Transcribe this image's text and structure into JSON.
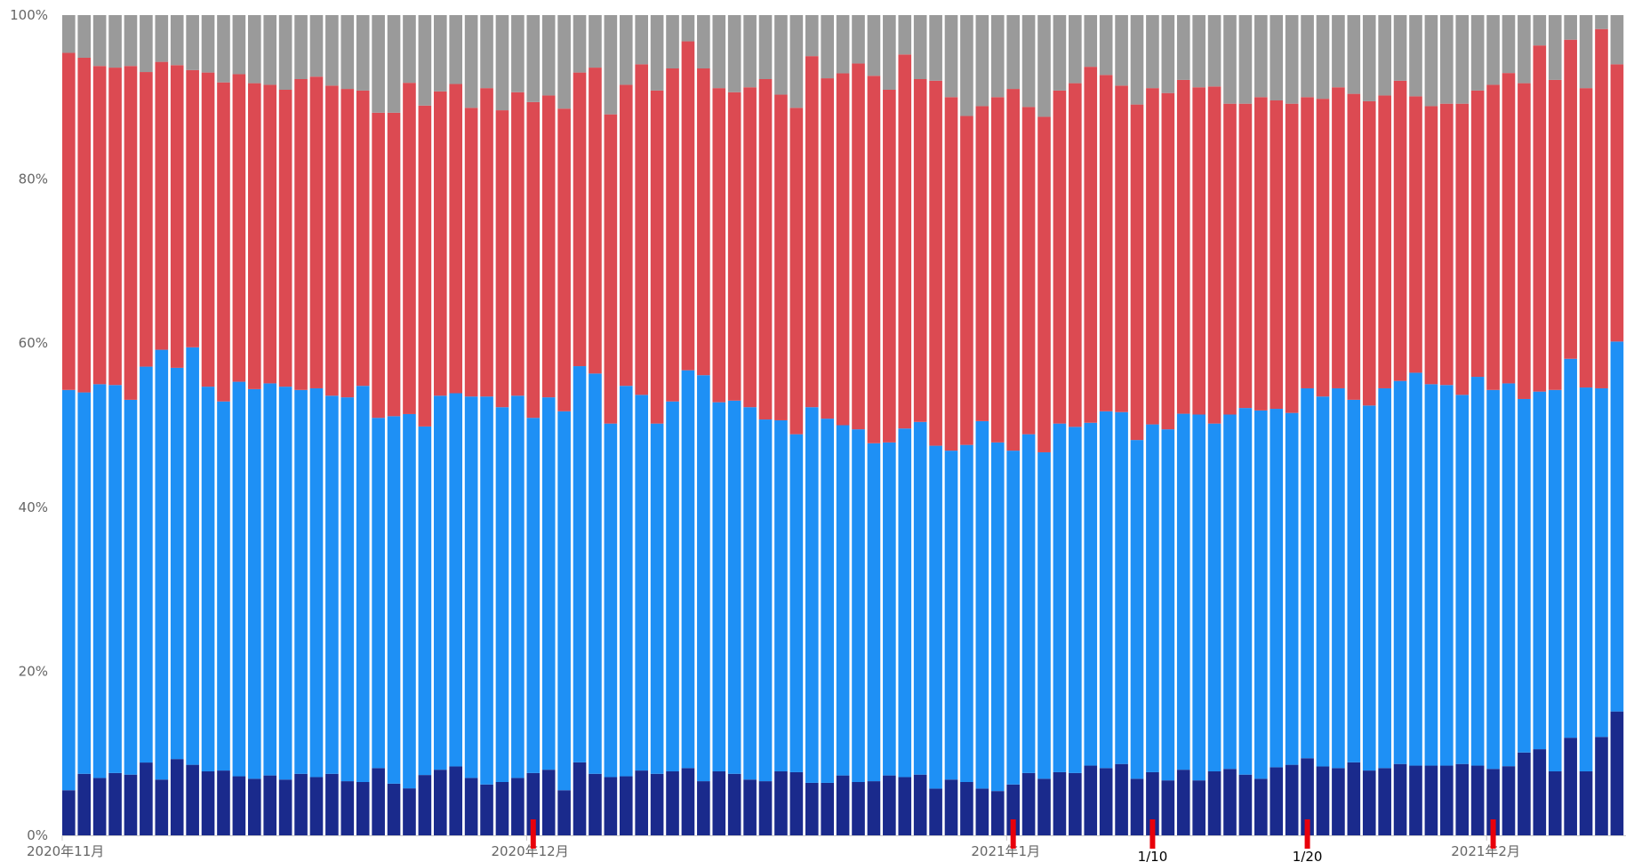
{
  "chart_data": {
    "type": "bar",
    "stacked": true,
    "normalized": true,
    "title": "",
    "xlabel": "",
    "ylabel": "",
    "ylim": [
      0,
      100
    ],
    "yticks": [
      "0%",
      "20%",
      "40%",
      "60%",
      "80%",
      "100%"
    ],
    "x_start": "2020-11-01",
    "x_end": "2021-02-11",
    "x_interval": "day",
    "x_tick_labels": [
      {
        "date": "2020-11-01",
        "label": "2020年11月"
      },
      {
        "date": "2020-12-01",
        "label": "2020年12月"
      },
      {
        "date": "2021-01-01",
        "label": "2021年1月"
      },
      {
        "date": "2021-02-01",
        "label": "2021年2月"
      }
    ],
    "annotation_markers": [
      {
        "date": "2020-12-01",
        "label": "",
        "color": "#e8000b"
      },
      {
        "date": "2021-01-01",
        "label": "",
        "color": "#e8000b"
      },
      {
        "date": "2021-01-10",
        "label": "1/10",
        "color": "#e8000b"
      },
      {
        "date": "2021-01-20",
        "label": "1/20",
        "color": "#e8000b"
      },
      {
        "date": "2021-02-01",
        "label": "",
        "color": "#e8000b"
      }
    ],
    "grid": false,
    "legend": "none",
    "series_stack_order": "bottom-to-top",
    "series": [
      {
        "color": "#1a2a8c",
        "values": [
          5.5,
          7.5,
          7,
          7.6,
          7.4,
          8.7,
          6.8,
          9.3,
          8.6,
          7.8,
          7.9,
          7.2,
          6.9,
          7.3,
          6.8,
          7.5,
          7.1,
          7.5,
          6.6,
          6.5,
          8.2,
          6.3,
          5.9,
          7.2,
          8,
          8.4,
          7,
          6.2,
          6.5,
          7,
          7.6,
          8,
          5.5,
          8.9,
          7.5,
          7.1,
          7.2,
          7.9,
          7.5,
          7.8,
          8.2,
          6.6,
          7.8,
          7.5,
          6.8,
          6.6,
          7.8,
          7.7,
          6.4,
          6.4,
          7.3,
          6.5,
          6.6,
          7.3,
          7.1,
          7.4,
          5.7,
          6.8,
          6.5,
          5.7,
          5.4,
          6.2,
          7.6,
          6.9,
          7.7,
          7.6,
          8.5,
          8.2,
          8.7,
          6.9,
          7.7,
          6.7,
          8,
          6.7,
          7.8,
          8.1,
          7.4,
          6.9,
          8.3,
          8.6,
          9.4,
          8.4,
          8.2,
          8.9,
          7.9,
          8.2,
          8.7,
          8.5,
          8.5,
          8.5,
          8.7,
          8.5,
          8.1,
          8.6,
          10.1,
          10.5,
          7.8,
          11.9,
          7.8,
          12,
          15.1
        ]
      },
      {
        "color": "#1e90f5",
        "values": [
          48.8,
          46.5,
          48,
          47.3,
          45.7,
          47.3,
          52.4,
          47.7,
          50.9,
          46.9,
          45,
          48.1,
          47.5,
          47.8,
          47.9,
          46.8,
          47.4,
          46.1,
          46.8,
          48.3,
          42.7,
          44.8,
          47,
          41.6,
          45.6,
          45.5,
          46.5,
          47.3,
          45.7,
          46.6,
          43.3,
          45.4,
          46.2,
          48.3,
          48.8,
          43.1,
          47.6,
          45.8,
          42.7,
          45.1,
          48.5,
          49.5,
          45,
          45.5,
          45.4,
          44.1,
          42.8,
          41.2,
          45.8,
          44.4,
          42.7,
          43,
          41.2,
          40.6,
          42.5,
          43,
          41.8,
          40.1,
          41.1,
          44.8,
          42.5,
          40.7,
          41.3,
          39.8,
          42.5,
          42.2,
          41.8,
          43.5,
          42.9,
          41.3,
          42.4,
          42.8,
          43.4,
          44.6,
          42.4,
          43.2,
          44.7,
          44.9,
          43.7,
          42.9,
          45.1,
          45.1,
          46.3,
          44.2,
          44.5,
          46.3,
          46.7,
          47.9,
          46.5,
          46.4,
          45,
          47.4,
          46.2,
          47.6,
          43.1,
          43.6,
          46.5,
          46.2,
          46.8,
          42.5,
          45.1
        ]
      },
      {
        "color": "#dc4a52",
        "values": [
          41.1,
          40.8,
          38.8,
          38.7,
          40.7,
          35.2,
          35.1,
          36.9,
          33.8,
          38.3,
          38.9,
          37.5,
          37.3,
          36.4,
          36.2,
          37.9,
          38,
          37.8,
          37.6,
          36,
          37.2,
          37,
          41.6,
          38.3,
          37.1,
          37.7,
          35.2,
          37.6,
          36.2,
          37,
          38.5,
          36.8,
          36.9,
          35.8,
          37.3,
          37.7,
          36.7,
          40.3,
          40.6,
          40.6,
          40.1,
          37.4,
          38.3,
          37.6,
          39,
          41.5,
          39.7,
          39.8,
          42.8,
          41.5,
          42.9,
          44.6,
          44.8,
          43,
          45.6,
          41.8,
          44.5,
          43.1,
          40.1,
          38.4,
          42.1,
          44.1,
          39.9,
          40.9,
          40.6,
          41.9,
          43.4,
          41,
          39.8,
          40.9,
          41,
          41,
          40.7,
          39.9,
          41.1,
          37.9,
          37.1,
          38.2,
          37.6,
          37.7,
          35.5,
          36.3,
          36.7,
          37.3,
          37.1,
          35.7,
          36.6,
          33.7,
          33.9,
          34.3,
          35.5,
          34.9,
          37.2,
          38.6,
          38.5,
          42.2,
          37.8,
          38.9,
          36.5,
          43.8,
          33.8
        ]
      },
      {
        "color": "#9a9a9a",
        "values": [
          4.6,
          5.2,
          6.2,
          6.4,
          6.2,
          6.8,
          5.7,
          6.1,
          6.7,
          7,
          8.2,
          7.2,
          8.3,
          8.5,
          9.1,
          7.8,
          7.5,
          8.6,
          9,
          9.2,
          11.9,
          11.9,
          8.5,
          10.8,
          9.3,
          8.4,
          11.3,
          8.9,
          11.6,
          9.4,
          10.6,
          9.8,
          11.4,
          7,
          6.4,
          12.1,
          8.5,
          6,
          9.2,
          6.5,
          3.2,
          6.5,
          8.9,
          9.4,
          8.8,
          7.8,
          9.7,
          11.3,
          5,
          7.7,
          7.1,
          5.9,
          7.4,
          9.1,
          4.8,
          7.8,
          8,
          10,
          12.3,
          11.1,
          10,
          9,
          11.2,
          12.4,
          9.2,
          8.3,
          6.3,
          7.3,
          8.6,
          10.9,
          8.9,
          9.5,
          7.9,
          8.8,
          8.7,
          10.8,
          10.8,
          10,
          10.4,
          10.8,
          10,
          10.2,
          8.8,
          9.6,
          10.5,
          9.8,
          8,
          9.9,
          11.1,
          10.8,
          10.8,
          9.2,
          8.5,
          7.2,
          8.3,
          3.7,
          7.9,
          3,
          8.9,
          1.7,
          6
        ]
      }
    ]
  }
}
